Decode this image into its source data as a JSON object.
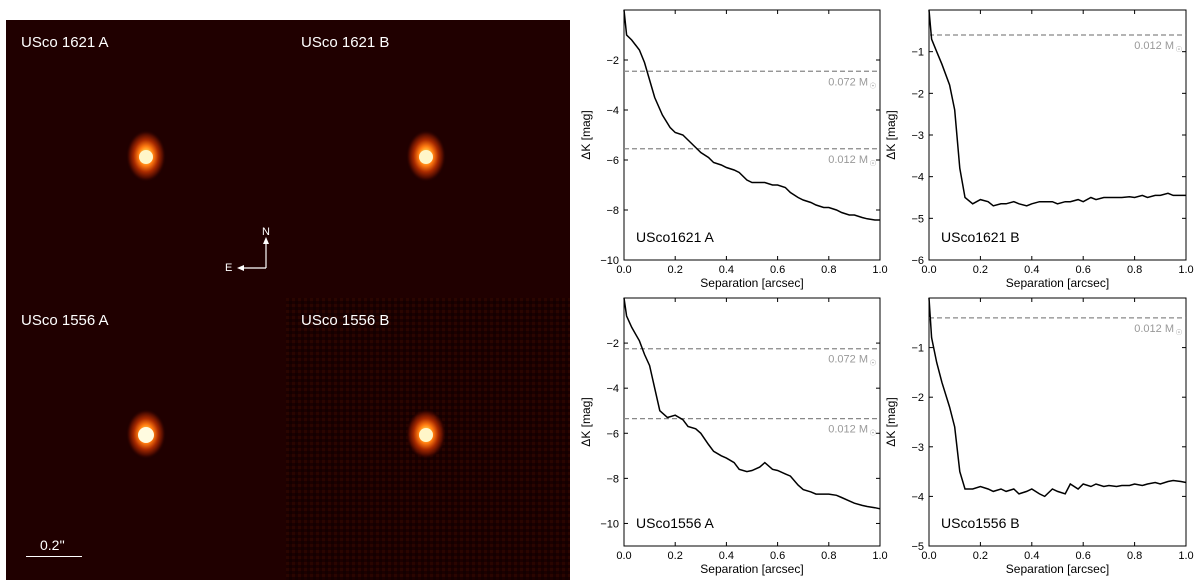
{
  "images": {
    "panels": [
      {
        "label": "USco 1621 A"
      },
      {
        "label": "USco 1621 B"
      },
      {
        "label": "USco 1556 A"
      },
      {
        "label": "USco 1556 B"
      }
    ],
    "compass": {
      "north": "N",
      "east": "E"
    },
    "scalebar": {
      "label": "0.2''"
    }
  },
  "chart_data": [
    {
      "type": "line",
      "annotation": "USco1621 A",
      "xlabel": "Separation [arcsec]",
      "ylabel": "ΔK [mag]",
      "xlim": [
        0,
        1.0
      ],
      "ylim": [
        -10,
        0
      ],
      "xticks": [
        0.0,
        0.2,
        0.4,
        0.6,
        0.8,
        1.0
      ],
      "yticks": [
        -10,
        -8,
        -6,
        -4,
        -2
      ],
      "xtick_labels": [
        "0.0",
        "0.2",
        "0.4",
        "0.6",
        "0.8",
        "1.0"
      ],
      "ytick_labels": [
        "−10",
        "−8",
        "−6",
        "−4",
        "−2"
      ],
      "series": [
        {
          "x": [
            0.0,
            0.01,
            0.03,
            0.06,
            0.08,
            0.1,
            0.12,
            0.15,
            0.18,
            0.2,
            0.23,
            0.25,
            0.28,
            0.3,
            0.33,
            0.35,
            0.38,
            0.4,
            0.43,
            0.45,
            0.48,
            0.5,
            0.53,
            0.55,
            0.58,
            0.6,
            0.63,
            0.65,
            0.68,
            0.7,
            0.73,
            0.75,
            0.78,
            0.8,
            0.83,
            0.85,
            0.88,
            0.9,
            0.93,
            0.95,
            0.98,
            1.0
          ],
          "y": [
            0.0,
            -1.0,
            -1.2,
            -1.6,
            -2.1,
            -2.8,
            -3.5,
            -4.2,
            -4.7,
            -4.9,
            -5.0,
            -5.2,
            -5.5,
            -5.7,
            -5.9,
            -6.1,
            -6.2,
            -6.3,
            -6.4,
            -6.5,
            -6.8,
            -6.9,
            -6.9,
            -6.9,
            -7.0,
            -7.0,
            -7.1,
            -7.3,
            -7.5,
            -7.6,
            -7.7,
            -7.8,
            -7.9,
            -7.9,
            -8.0,
            -8.1,
            -8.2,
            -8.2,
            -8.3,
            -8.35,
            -8.4,
            -8.4
          ]
        }
      ],
      "hlines": [
        {
          "y": -2.45,
          "label": "0.072 M"
        },
        {
          "y": -5.55,
          "label": "0.012 M"
        }
      ]
    },
    {
      "type": "line",
      "annotation": "USco1621 B",
      "xlabel": "Separation [arcsec]",
      "ylabel": "ΔK [mag]",
      "xlim": [
        0,
        1.0
      ],
      "ylim": [
        -6,
        0
      ],
      "xticks": [
        0.0,
        0.2,
        0.4,
        0.6,
        0.8,
        1.0
      ],
      "yticks": [
        -6,
        -5,
        -4,
        -3,
        -2,
        -1
      ],
      "xtick_labels": [
        "0.0",
        "0.2",
        "0.4",
        "0.6",
        "0.8",
        "1.0"
      ],
      "ytick_labels": [
        "−6",
        "−5",
        "−4",
        "−3",
        "−2",
        "−1"
      ],
      "series": [
        {
          "x": [
            0.0,
            0.01,
            0.03,
            0.05,
            0.08,
            0.1,
            0.12,
            0.14,
            0.17,
            0.2,
            0.23,
            0.25,
            0.28,
            0.3,
            0.33,
            0.35,
            0.38,
            0.4,
            0.43,
            0.45,
            0.48,
            0.5,
            0.53,
            0.55,
            0.58,
            0.6,
            0.63,
            0.65,
            0.68,
            0.7,
            0.73,
            0.75,
            0.78,
            0.8,
            0.83,
            0.85,
            0.88,
            0.9,
            0.93,
            0.95,
            0.98,
            1.0
          ],
          "y": [
            0.0,
            -0.7,
            -1.0,
            -1.3,
            -1.8,
            -2.4,
            -3.8,
            -4.5,
            -4.65,
            -4.55,
            -4.6,
            -4.7,
            -4.65,
            -4.65,
            -4.6,
            -4.65,
            -4.7,
            -4.65,
            -4.6,
            -4.6,
            -4.6,
            -4.65,
            -4.6,
            -4.6,
            -4.55,
            -4.6,
            -4.5,
            -4.55,
            -4.5,
            -4.5,
            -4.5,
            -4.5,
            -4.48,
            -4.5,
            -4.45,
            -4.5,
            -4.45,
            -4.45,
            -4.4,
            -4.45,
            -4.45,
            -4.45
          ]
        }
      ],
      "hlines": [
        {
          "y": -0.6,
          "label": "0.012 M"
        }
      ]
    },
    {
      "type": "line",
      "annotation": "USco1556 A",
      "xlabel": "Separation [arcsec]",
      "ylabel": "ΔK [mag]",
      "xlim": [
        0,
        1.0
      ],
      "ylim": [
        -11,
        0
      ],
      "xticks": [
        0.0,
        0.2,
        0.4,
        0.6,
        0.8,
        1.0
      ],
      "yticks": [
        -10,
        -8,
        -6,
        -4,
        -2
      ],
      "xtick_labels": [
        "0.0",
        "0.2",
        "0.4",
        "0.6",
        "0.8",
        "1.0"
      ],
      "ytick_labels": [
        "−10",
        "−8",
        "−6",
        "−4",
        "−2"
      ],
      "series": [
        {
          "x": [
            0.0,
            0.01,
            0.03,
            0.06,
            0.08,
            0.1,
            0.12,
            0.14,
            0.17,
            0.2,
            0.23,
            0.25,
            0.28,
            0.3,
            0.33,
            0.35,
            0.38,
            0.4,
            0.43,
            0.45,
            0.48,
            0.5,
            0.53,
            0.55,
            0.58,
            0.6,
            0.63,
            0.65,
            0.68,
            0.7,
            0.73,
            0.75,
            0.78,
            0.8,
            0.83,
            0.85,
            0.88,
            0.9,
            0.93,
            0.95,
            0.98,
            1.0
          ],
          "y": [
            0.0,
            -0.8,
            -1.3,
            -1.9,
            -2.5,
            -3.0,
            -4.0,
            -5.0,
            -5.3,
            -5.2,
            -5.4,
            -5.7,
            -5.8,
            -6.0,
            -6.5,
            -6.8,
            -7.0,
            -7.1,
            -7.3,
            -7.6,
            -7.7,
            -7.65,
            -7.5,
            -7.3,
            -7.6,
            -7.65,
            -7.8,
            -7.9,
            -8.3,
            -8.5,
            -8.6,
            -8.7,
            -8.7,
            -8.7,
            -8.75,
            -8.85,
            -9.0,
            -9.1,
            -9.2,
            -9.25,
            -9.3,
            -9.35
          ]
        }
      ],
      "hlines": [
        {
          "y": -2.25,
          "label": "0.072 M"
        },
        {
          "y": -5.35,
          "label": "0.012 M"
        }
      ]
    },
    {
      "type": "line",
      "annotation": "USco1556 B",
      "xlabel": "Separation [arcsec]",
      "ylabel": "ΔK [mag]",
      "xlim": [
        0,
        1.0
      ],
      "ylim": [
        -5,
        0
      ],
      "xticks": [
        0.0,
        0.2,
        0.4,
        0.6,
        0.8,
        1.0
      ],
      "yticks": [
        -5,
        -4,
        -3,
        -2,
        -1
      ],
      "xtick_labels": [
        "0.0",
        "0.2",
        "0.4",
        "0.6",
        "0.8",
        "1.0"
      ],
      "ytick_labels": [
        "−5",
        "−4",
        "−3",
        "−2",
        "−1"
      ],
      "series": [
        {
          "x": [
            0.0,
            0.01,
            0.03,
            0.05,
            0.08,
            0.1,
            0.12,
            0.14,
            0.17,
            0.2,
            0.23,
            0.25,
            0.28,
            0.3,
            0.33,
            0.35,
            0.38,
            0.4,
            0.43,
            0.45,
            0.48,
            0.5,
            0.53,
            0.55,
            0.58,
            0.6,
            0.63,
            0.65,
            0.68,
            0.7,
            0.73,
            0.75,
            0.78,
            0.8,
            0.83,
            0.85,
            0.88,
            0.9,
            0.93,
            0.95,
            0.98,
            1.0
          ],
          "y": [
            0.0,
            -0.8,
            -1.3,
            -1.7,
            -2.2,
            -2.6,
            -3.5,
            -3.85,
            -3.85,
            -3.8,
            -3.85,
            -3.9,
            -3.85,
            -3.9,
            -3.85,
            -3.95,
            -3.9,
            -3.85,
            -3.95,
            -4.0,
            -3.85,
            -3.9,
            -3.95,
            -3.75,
            -3.85,
            -3.75,
            -3.8,
            -3.75,
            -3.8,
            -3.78,
            -3.8,
            -3.78,
            -3.78,
            -3.75,
            -3.78,
            -3.75,
            -3.72,
            -3.75,
            -3.7,
            -3.68,
            -3.7,
            -3.72
          ]
        }
      ],
      "hlines": [
        {
          "y": -0.4,
          "label": "0.012 M"
        }
      ]
    }
  ]
}
